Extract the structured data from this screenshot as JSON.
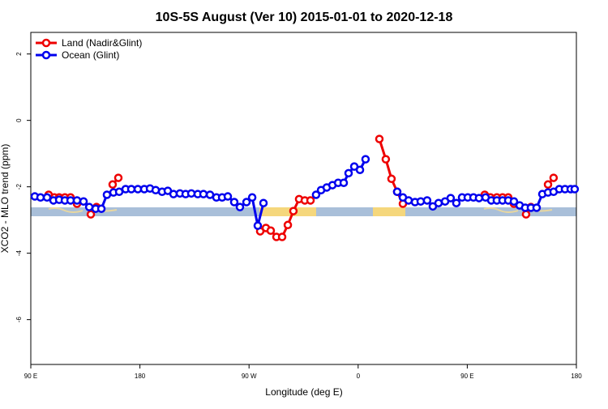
{
  "chart_data": {
    "type": "line",
    "title": "10S-5S August (Ver 10)   2015-01-01 to 2020-12-18",
    "x_label": "Longitude (deg E)",
    "y_label": "XCO2 - MLO trend (ppm)",
    "xlim": [
      90,
      540
    ],
    "xticks": [
      {
        "value": 90,
        "label": "90 E"
      },
      {
        "value": 180,
        "label": "180"
      },
      {
        "value": 270,
        "label": "90 W"
      },
      {
        "value": 360,
        "label": "0"
      },
      {
        "value": 450,
        "label": "90 E"
      },
      {
        "value": 540,
        "label": "180"
      }
    ],
    "ylim": [
      -7.35,
      2.65
    ],
    "yticks": [
      2,
      0,
      -2,
      -4,
      -6
    ],
    "legend": "top-left",
    "series": [
      {
        "name": "Land (Nadir&Glint)",
        "color": "#ee0000",
        "x": [
          104.7,
          109.4,
          113.4,
          118.1,
          122.8,
          128.1,
          null,
          139.5,
          144.2,
          null,
          157.5,
          162.2,
          null,
          279.2,
          283.9,
          287.9,
          292.6,
          297.3,
          302.0,
          306.6,
          311.3,
          316.0,
          320.7,
          null,
          377.5,
          382.8,
          387.5,
          392.2,
          396.9,
          null,
          464.4,
          469.1,
          474.4,
          479.1,
          483.8,
          488.5,
          null,
          498.5,
          502.5,
          null,
          516.6,
          521.2
        ],
        "values": [
          -2.24,
          -2.32,
          -2.32,
          -2.32,
          -2.32,
          -2.51,
          null,
          -2.83,
          -2.61,
          null,
          -1.93,
          -1.73,
          null,
          -3.34,
          -3.24,
          -3.32,
          -3.51,
          -3.51,
          -3.15,
          -2.73,
          -2.37,
          -2.41,
          -2.41,
          null,
          -0.56,
          -1.17,
          -1.76,
          -2.15,
          -2.51,
          null,
          -2.24,
          -2.32,
          -2.32,
          -2.32,
          -2.32,
          -2.51,
          null,
          -2.83,
          -2.61,
          null,
          -1.93,
          -1.73
        ]
      },
      {
        "name": "Ocean (Glint)",
        "color": "#0000ee",
        "x": [
          93.3,
          98.0,
          103.4,
          108.7,
          113.4,
          118.1,
          122.8,
          128.1,
          133.5,
          138.2,
          143.5,
          148.2,
          152.8,
          158.2,
          162.9,
          168.2,
          172.9,
          178.3,
          183.6,
          188.3,
          193.0,
          198.3,
          203.0,
          207.7,
          213.0,
          217.7,
          222.4,
          227.7,
          232.4,
          237.8,
          243.1,
          247.8,
          252.5,
          257.8,
          262.5,
          267.9,
          272.6,
          277.2,
          281.9,
          null,
          325.3,
          329.4,
          334.1,
          338.8,
          343.5,
          348.1,
          352.1,
          356.8,
          361.5,
          366.1,
          null,
          392.2,
          396.9,
          401.6,
          406.9,
          411.6,
          416.9,
          421.6,
          426.3,
          431.7,
          436.3,
          441.0,
          445.7,
          450.4,
          455.1,
          459.7,
          465.1,
          469.8,
          474.4,
          479.1,
          483.8,
          488.5,
          493.2,
          497.8,
          502.5,
          507.2,
          511.9,
          516.6,
          521.2,
          525.9,
          530.6,
          535.3,
          538.6
        ],
        "values": [
          -2.29,
          -2.32,
          -2.32,
          -2.41,
          -2.39,
          -2.41,
          -2.41,
          -2.41,
          -2.44,
          -2.61,
          -2.66,
          -2.66,
          -2.24,
          -2.17,
          -2.15,
          -2.07,
          -2.07,
          -2.07,
          -2.07,
          -2.05,
          -2.1,
          -2.15,
          -2.12,
          -2.22,
          -2.2,
          -2.22,
          -2.2,
          -2.22,
          -2.22,
          -2.24,
          -2.32,
          -2.32,
          -2.29,
          -2.46,
          -2.61,
          -2.46,
          -2.32,
          -3.17,
          -2.49,
          null,
          -2.24,
          -2.1,
          -2.02,
          -1.95,
          -1.88,
          -1.88,
          -1.59,
          -1.39,
          -1.49,
          -1.17,
          null,
          -2.15,
          -2.32,
          -2.41,
          -2.46,
          -2.44,
          -2.41,
          -2.59,
          -2.49,
          -2.44,
          -2.34,
          -2.49,
          -2.32,
          -2.32,
          -2.32,
          -2.34,
          -2.32,
          -2.41,
          -2.41,
          -2.41,
          -2.41,
          -2.44,
          -2.56,
          -2.63,
          -2.63,
          -2.63,
          -2.22,
          -2.17,
          -2.15,
          -2.07,
          -2.07,
          -2.07,
          -2.07
        ]
      }
    ]
  }
}
